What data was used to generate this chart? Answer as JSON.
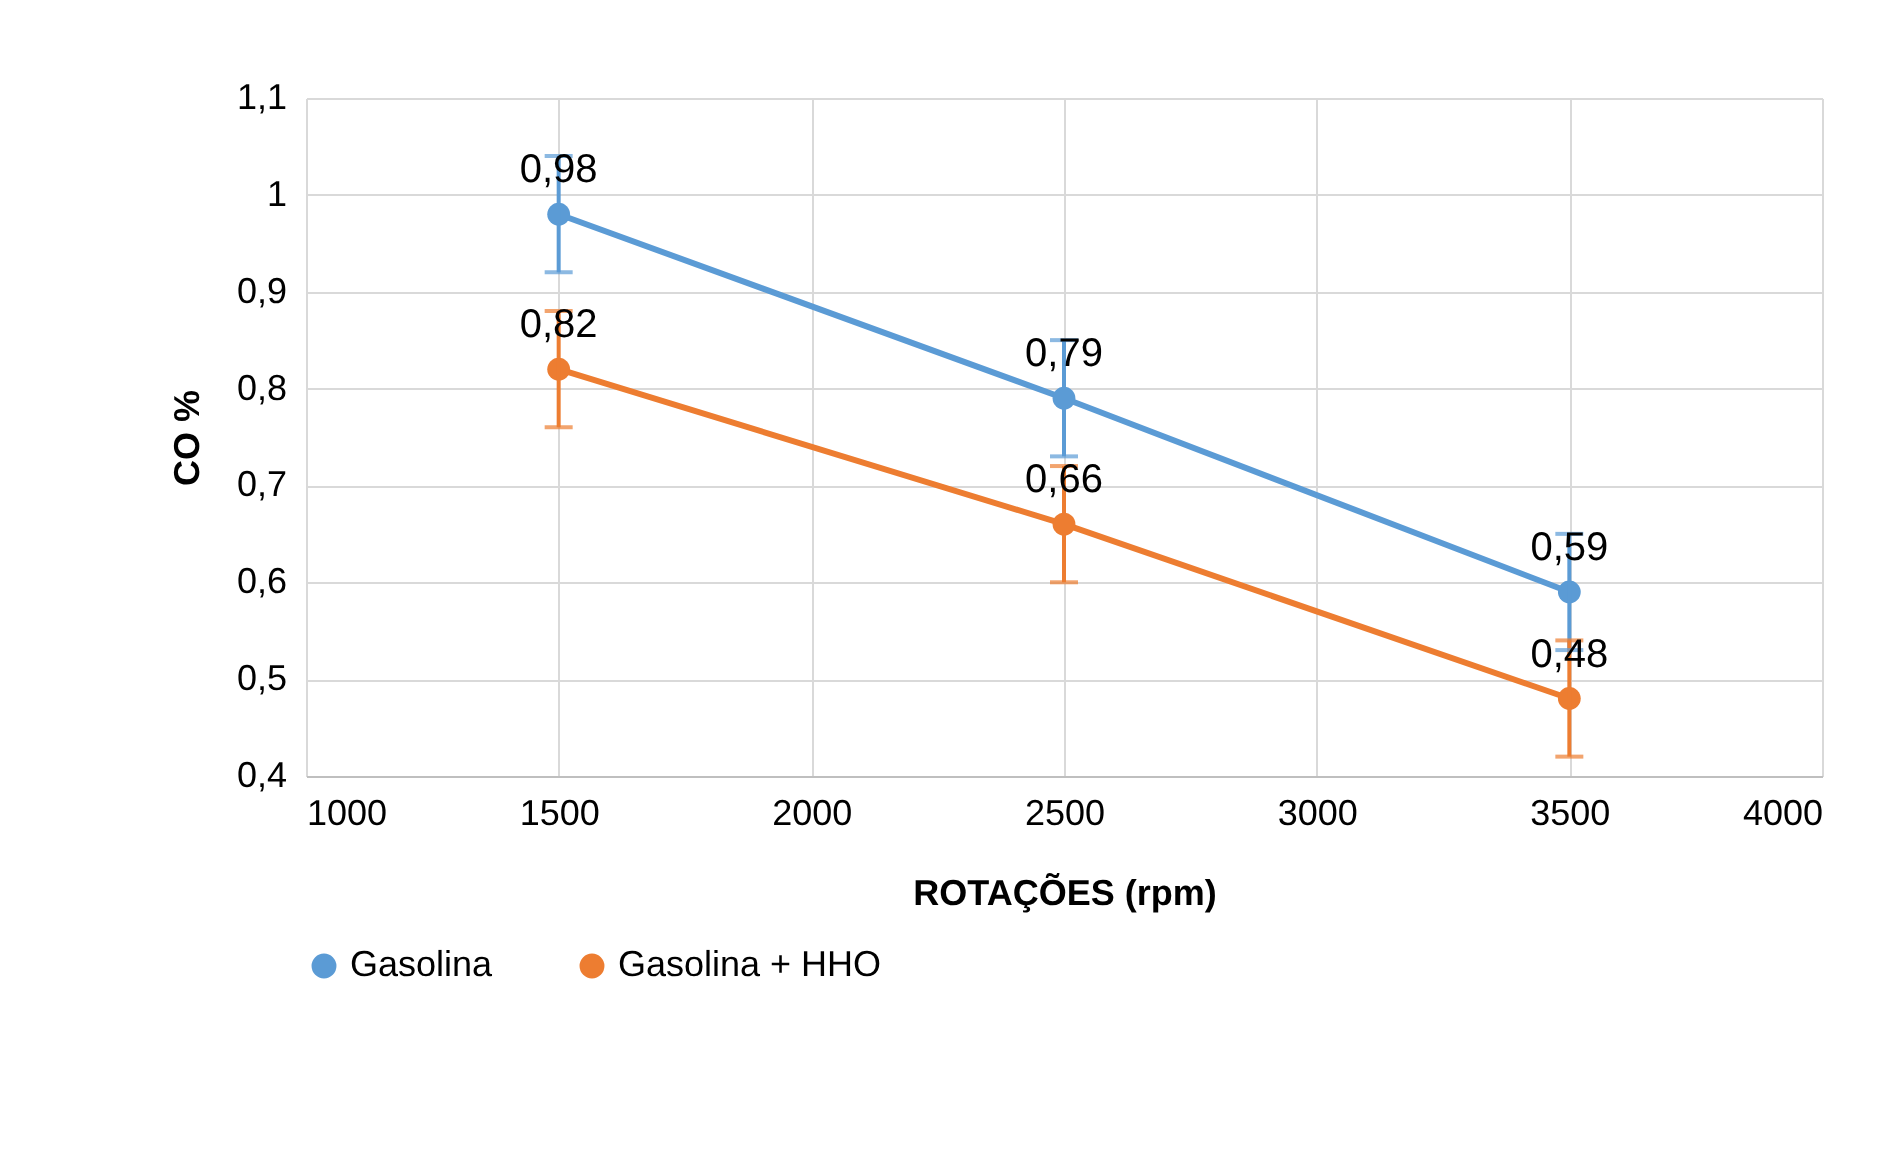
{
  "chart_data": {
    "type": "line",
    "xlabel": "ROTAÇÕES (rpm)",
    "ylabel": "CO %",
    "x": [
      1500,
      2500,
      3500
    ],
    "series": [
      {
        "name": "Gasolina",
        "color": "#5b9bd5",
        "values": [
          0.98,
          0.79,
          0.59
        ],
        "value_labels": [
          "0,98",
          "0,79",
          "0,59"
        ],
        "errors": [
          0.06,
          0.06,
          0.06
        ]
      },
      {
        "name": "Gasolina + HHO",
        "color": "#ed7d31",
        "values": [
          0.82,
          0.66,
          0.48
        ],
        "value_labels": [
          "0,82",
          "0,66",
          "0,48"
        ],
        "errors": [
          0.06,
          0.06,
          0.06
        ]
      }
    ],
    "xlim": [
      1000,
      4000
    ],
    "xticks": [
      1000,
      1500,
      2000,
      2500,
      3000,
      3500,
      4000
    ],
    "ylim": [
      0.4,
      1.1
    ],
    "yticks": [
      {
        "value": 0.4,
        "label": "0,4"
      },
      {
        "value": 0.5,
        "label": "0,5"
      },
      {
        "value": 0.6,
        "label": "0,6"
      },
      {
        "value": 0.7,
        "label": "0,7"
      },
      {
        "value": 0.8,
        "label": "0,8"
      },
      {
        "value": 0.9,
        "label": "0,9"
      },
      {
        "value": 1,
        "label": "1"
      },
      {
        "value": 1.1,
        "label": "1,1"
      }
    ],
    "grid": true,
    "legend": "bottom",
    "marker": "circle",
    "line_style": "solid"
  }
}
